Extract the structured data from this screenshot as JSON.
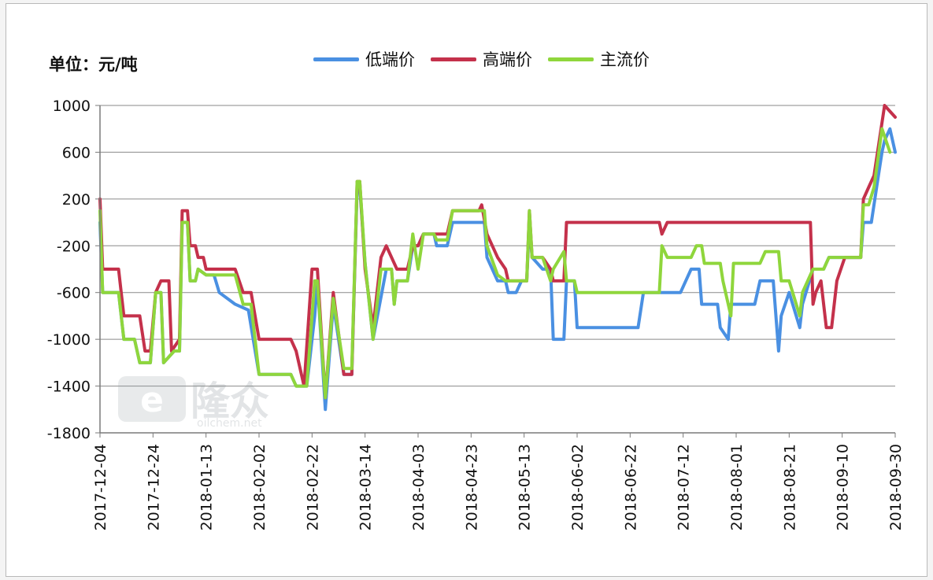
{
  "chart_data": {
    "type": "line",
    "unit_label": "单位：元/吨",
    "ylim": [
      -1800,
      1000
    ],
    "yticks": [
      "1000",
      "600",
      "200",
      "-200",
      "-600",
      "-1000",
      "-1400",
      "-1800"
    ],
    "ytick_values": [
      1000,
      600,
      200,
      -200,
      -600,
      -1000,
      -1400,
      -1800
    ],
    "xlim": [
      "2017-12-04",
      "2018-09-30"
    ],
    "xticks": [
      "2017-12-04",
      "2017-12-24",
      "2018-01-13",
      "2018-02-02",
      "2018-02-22",
      "2018-03-14",
      "2018-04-03",
      "2018-04-23",
      "2018-05-13",
      "2018-06-02",
      "2018-06-22",
      "2018-07-12",
      "2018-08-01",
      "2018-08-21",
      "2018-09-10",
      "2018-09-30"
    ],
    "grid": "horizontal",
    "legend_position": "top",
    "series": [
      {
        "name": "低端价",
        "color": "#4a90e2",
        "points": [
          [
            "2017-12-04",
            0
          ],
          [
            "2017-12-05",
            -600
          ],
          [
            "2017-12-11",
            -600
          ],
          [
            "2017-12-13",
            -1000
          ],
          [
            "2017-12-17",
            -1000
          ],
          [
            "2017-12-19",
            -1200
          ],
          [
            "2017-12-23",
            -1200
          ],
          [
            "2017-12-25",
            -600
          ],
          [
            "2017-12-27",
            -600
          ],
          [
            "2017-12-28",
            -1200
          ],
          [
            "2018-01-01",
            -1100
          ],
          [
            "2018-01-03",
            -1100
          ],
          [
            "2018-01-04",
            0
          ],
          [
            "2018-01-06",
            0
          ],
          [
            "2018-01-07",
            -500
          ],
          [
            "2018-01-09",
            -500
          ],
          [
            "2018-01-10",
            -400
          ],
          [
            "2018-01-13",
            -450
          ],
          [
            "2018-01-16",
            -450
          ],
          [
            "2018-01-18",
            -600
          ],
          [
            "2018-01-24",
            -700
          ],
          [
            "2018-01-29",
            -750
          ],
          [
            "2018-02-02",
            -1300
          ],
          [
            "2018-02-14",
            -1300
          ],
          [
            "2018-02-16",
            -1400
          ],
          [
            "2018-02-20",
            -1400
          ],
          [
            "2018-02-23",
            -800
          ],
          [
            "2018-02-24",
            -500
          ],
          [
            "2018-02-27",
            -1600
          ],
          [
            "2018-03-02",
            -700
          ],
          [
            "2018-03-06",
            -1300
          ],
          [
            "2018-03-09",
            -1300
          ],
          [
            "2018-03-11",
            300
          ],
          [
            "2018-03-12",
            300
          ],
          [
            "2018-03-14",
            -350
          ],
          [
            "2018-03-17",
            -1000
          ],
          [
            "2018-03-22",
            -400
          ],
          [
            "2018-03-24",
            -400
          ],
          [
            "2018-03-25",
            -700
          ],
          [
            "2018-03-26",
            -500
          ],
          [
            "2018-03-30",
            -500
          ],
          [
            "2018-04-01",
            -200
          ],
          [
            "2018-04-03",
            -200
          ],
          [
            "2018-04-05",
            -100
          ],
          [
            "2018-04-09",
            -100
          ],
          [
            "2018-04-10",
            -200
          ],
          [
            "2018-04-14",
            -200
          ],
          [
            "2018-04-16",
            0
          ],
          [
            "2018-04-28",
            0
          ],
          [
            "2018-04-29",
            -300
          ],
          [
            "2018-05-03",
            -500
          ],
          [
            "2018-05-06",
            -500
          ],
          [
            "2018-05-07",
            -600
          ],
          [
            "2018-05-10",
            -600
          ],
          [
            "2018-05-12",
            -500
          ],
          [
            "2018-05-14",
            -500
          ],
          [
            "2018-05-15",
            0
          ],
          [
            "2018-05-16",
            -300
          ],
          [
            "2018-05-20",
            -400
          ],
          [
            "2018-05-23",
            -400
          ],
          [
            "2018-05-24",
            -1000
          ],
          [
            "2018-05-28",
            -1000
          ],
          [
            "2018-05-29",
            -500
          ],
          [
            "2018-06-01",
            -500
          ],
          [
            "2018-06-02",
            -900
          ],
          [
            "2018-06-25",
            -900
          ],
          [
            "2018-06-27",
            -600
          ],
          [
            "2018-07-11",
            -600
          ],
          [
            "2018-07-13",
            -500
          ],
          [
            "2018-07-15",
            -400
          ],
          [
            "2018-07-18",
            -400
          ],
          [
            "2018-07-19",
            -700
          ],
          [
            "2018-07-25",
            -700
          ],
          [
            "2018-07-26",
            -900
          ],
          [
            "2018-07-29",
            -1000
          ],
          [
            "2018-07-30",
            -700
          ],
          [
            "2018-08-08",
            -700
          ],
          [
            "2018-08-10",
            -500
          ],
          [
            "2018-08-15",
            -500
          ],
          [
            "2018-08-17",
            -1100
          ],
          [
            "2018-08-18",
            -800
          ],
          [
            "2018-08-21",
            -600
          ],
          [
            "2018-08-25",
            -900
          ],
          [
            "2018-08-26",
            -700
          ],
          [
            "2018-08-30",
            -400
          ],
          [
            "2018-09-03",
            -400
          ],
          [
            "2018-09-05",
            -300
          ],
          [
            "2018-09-17",
            -300
          ],
          [
            "2018-09-18",
            0
          ],
          [
            "2018-09-21",
            0
          ],
          [
            "2018-09-23",
            300
          ],
          [
            "2018-09-25",
            600
          ],
          [
            "2018-09-26",
            700
          ],
          [
            "2018-09-28",
            800
          ],
          [
            "2018-09-30",
            600
          ]
        ]
      },
      {
        "name": "高端价",
        "color": "#c4314b",
        "points": [
          [
            "2017-12-04",
            200
          ],
          [
            "2017-12-05",
            -400
          ],
          [
            "2017-12-11",
            -400
          ],
          [
            "2017-12-13",
            -800
          ],
          [
            "2017-12-19",
            -800
          ],
          [
            "2017-12-21",
            -1100
          ],
          [
            "2017-12-23",
            -1100
          ],
          [
            "2017-12-25",
            -600
          ],
          [
            "2017-12-27",
            -500
          ],
          [
            "2017-12-30",
            -500
          ],
          [
            "2017-12-31",
            -1100
          ],
          [
            "2018-01-03",
            -1000
          ],
          [
            "2018-01-04",
            100
          ],
          [
            "2018-01-06",
            100
          ],
          [
            "2018-01-07",
            -200
          ],
          [
            "2018-01-09",
            -200
          ],
          [
            "2018-01-10",
            -300
          ],
          [
            "2018-01-12",
            -300
          ],
          [
            "2018-01-13",
            -400
          ],
          [
            "2018-01-24",
            -400
          ],
          [
            "2018-01-27",
            -600
          ],
          [
            "2018-01-30",
            -600
          ],
          [
            "2018-02-02",
            -1000
          ],
          [
            "2018-02-14",
            -1000
          ],
          [
            "2018-02-16",
            -1100
          ],
          [
            "2018-02-19",
            -1400
          ],
          [
            "2018-02-22",
            -400
          ],
          [
            "2018-02-24",
            -400
          ],
          [
            "2018-02-27",
            -1500
          ],
          [
            "2018-03-02",
            -600
          ],
          [
            "2018-03-06",
            -1300
          ],
          [
            "2018-03-09",
            -1300
          ],
          [
            "2018-03-11",
            350
          ],
          [
            "2018-03-12",
            350
          ],
          [
            "2018-03-14",
            -400
          ],
          [
            "2018-03-17",
            -900
          ],
          [
            "2018-03-20",
            -300
          ],
          [
            "2018-03-22",
            -200
          ],
          [
            "2018-03-24",
            -300
          ],
          [
            "2018-03-26",
            -400
          ],
          [
            "2018-03-30",
            -400
          ],
          [
            "2018-04-01",
            -200
          ],
          [
            "2018-04-03",
            -200
          ],
          [
            "2018-04-05",
            -100
          ],
          [
            "2018-04-09",
            -100
          ],
          [
            "2018-04-10",
            -100
          ],
          [
            "2018-04-14",
            -100
          ],
          [
            "2018-04-16",
            100
          ],
          [
            "2018-04-26",
            100
          ],
          [
            "2018-04-27",
            150
          ],
          [
            "2018-04-29",
            -100
          ],
          [
            "2018-05-03",
            -300
          ],
          [
            "2018-05-06",
            -400
          ],
          [
            "2018-05-07",
            -500
          ],
          [
            "2018-05-12",
            -500
          ],
          [
            "2018-05-14",
            -500
          ],
          [
            "2018-05-15",
            100
          ],
          [
            "2018-05-16",
            -300
          ],
          [
            "2018-05-20",
            -300
          ],
          [
            "2018-05-23",
            -400
          ],
          [
            "2018-05-24",
            -500
          ],
          [
            "2018-05-28",
            -500
          ],
          [
            "2018-05-29",
            0
          ],
          [
            "2018-07-03",
            0
          ],
          [
            "2018-07-04",
            -100
          ],
          [
            "2018-07-06",
            0
          ],
          [
            "2018-08-29",
            0
          ],
          [
            "2018-08-30",
            -700
          ],
          [
            "2018-08-31",
            -600
          ],
          [
            "2018-09-02",
            -500
          ],
          [
            "2018-09-04",
            -900
          ],
          [
            "2018-09-06",
            -900
          ],
          [
            "2018-09-08",
            -500
          ],
          [
            "2018-09-11",
            -300
          ],
          [
            "2018-09-17",
            -300
          ],
          [
            "2018-09-18",
            200
          ],
          [
            "2018-09-20",
            300
          ],
          [
            "2018-09-22",
            400
          ],
          [
            "2018-09-24",
            700
          ],
          [
            "2018-09-26",
            1000
          ],
          [
            "2018-09-30",
            900
          ]
        ]
      },
      {
        "name": "主流价",
        "color": "#8fd63c",
        "points": [
          [
            "2017-12-04",
            100
          ],
          [
            "2017-12-05",
            -600
          ],
          [
            "2017-12-11",
            -600
          ],
          [
            "2017-12-13",
            -1000
          ],
          [
            "2017-12-17",
            -1000
          ],
          [
            "2017-12-19",
            -1200
          ],
          [
            "2017-12-23",
            -1200
          ],
          [
            "2017-12-25",
            -600
          ],
          [
            "2017-12-27",
            -600
          ],
          [
            "2017-12-28",
            -1200
          ],
          [
            "2018-01-01",
            -1100
          ],
          [
            "2018-01-03",
            -1100
          ],
          [
            "2018-01-04",
            0
          ],
          [
            "2018-01-06",
            0
          ],
          [
            "2018-01-07",
            -500
          ],
          [
            "2018-01-09",
            -500
          ],
          [
            "2018-01-10",
            -400
          ],
          [
            "2018-01-13",
            -450
          ],
          [
            "2018-01-24",
            -450
          ],
          [
            "2018-01-27",
            -700
          ],
          [
            "2018-01-30",
            -700
          ],
          [
            "2018-02-02",
            -1300
          ],
          [
            "2018-02-14",
            -1300
          ],
          [
            "2018-02-16",
            -1400
          ],
          [
            "2018-02-20",
            -1400
          ],
          [
            "2018-02-23",
            -500
          ],
          [
            "2018-02-24",
            -500
          ],
          [
            "2018-02-27",
            -1500
          ],
          [
            "2018-03-02",
            -650
          ],
          [
            "2018-03-06",
            -1250
          ],
          [
            "2018-03-09",
            -1250
          ],
          [
            "2018-03-11",
            350
          ],
          [
            "2018-03-12",
            350
          ],
          [
            "2018-03-14",
            -350
          ],
          [
            "2018-03-17",
            -1000
          ],
          [
            "2018-03-20",
            -400
          ],
          [
            "2018-03-22",
            -400
          ],
          [
            "2018-03-24",
            -400
          ],
          [
            "2018-03-25",
            -700
          ],
          [
            "2018-03-26",
            -500
          ],
          [
            "2018-03-30",
            -500
          ],
          [
            "2018-04-01",
            -100
          ],
          [
            "2018-04-03",
            -400
          ],
          [
            "2018-04-05",
            -100
          ],
          [
            "2018-04-09",
            -100
          ],
          [
            "2018-04-10",
            -150
          ],
          [
            "2018-04-14",
            -150
          ],
          [
            "2018-04-16",
            100
          ],
          [
            "2018-04-28",
            100
          ],
          [
            "2018-04-29",
            -200
          ],
          [
            "2018-05-03",
            -450
          ],
          [
            "2018-05-06",
            -500
          ],
          [
            "2018-05-07",
            -500
          ],
          [
            "2018-05-12",
            -500
          ],
          [
            "2018-05-14",
            -500
          ],
          [
            "2018-05-15",
            100
          ],
          [
            "2018-05-16",
            -300
          ],
          [
            "2018-05-20",
            -300
          ],
          [
            "2018-05-23",
            -500
          ],
          [
            "2018-05-24",
            -400
          ],
          [
            "2018-05-28",
            -250
          ],
          [
            "2018-05-29",
            -500
          ],
          [
            "2018-06-01",
            -500
          ],
          [
            "2018-06-02",
            -600
          ],
          [
            "2018-07-03",
            -600
          ],
          [
            "2018-07-04",
            -200
          ],
          [
            "2018-07-06",
            -300
          ],
          [
            "2018-07-15",
            -300
          ],
          [
            "2018-07-17",
            -200
          ],
          [
            "2018-07-19",
            -200
          ],
          [
            "2018-07-20",
            -350
          ],
          [
            "2018-07-26",
            -350
          ],
          [
            "2018-07-27",
            -500
          ],
          [
            "2018-07-30",
            -800
          ],
          [
            "2018-07-31",
            -350
          ],
          [
            "2018-08-10",
            -350
          ],
          [
            "2018-08-12",
            -250
          ],
          [
            "2018-08-17",
            -250
          ],
          [
            "2018-08-18",
            -500
          ],
          [
            "2018-08-21",
            -500
          ],
          [
            "2018-08-25",
            -800
          ],
          [
            "2018-08-26",
            -600
          ],
          [
            "2018-08-30",
            -400
          ],
          [
            "2018-09-03",
            -400
          ],
          [
            "2018-09-05",
            -300
          ],
          [
            "2018-09-17",
            -300
          ],
          [
            "2018-09-18",
            150
          ],
          [
            "2018-09-20",
            150
          ],
          [
            "2018-09-22",
            300
          ],
          [
            "2018-09-25",
            800
          ],
          [
            "2018-09-28",
            600
          ]
        ]
      }
    ]
  },
  "watermark": {
    "brand": "隆众",
    "url": "oilchem.net"
  }
}
